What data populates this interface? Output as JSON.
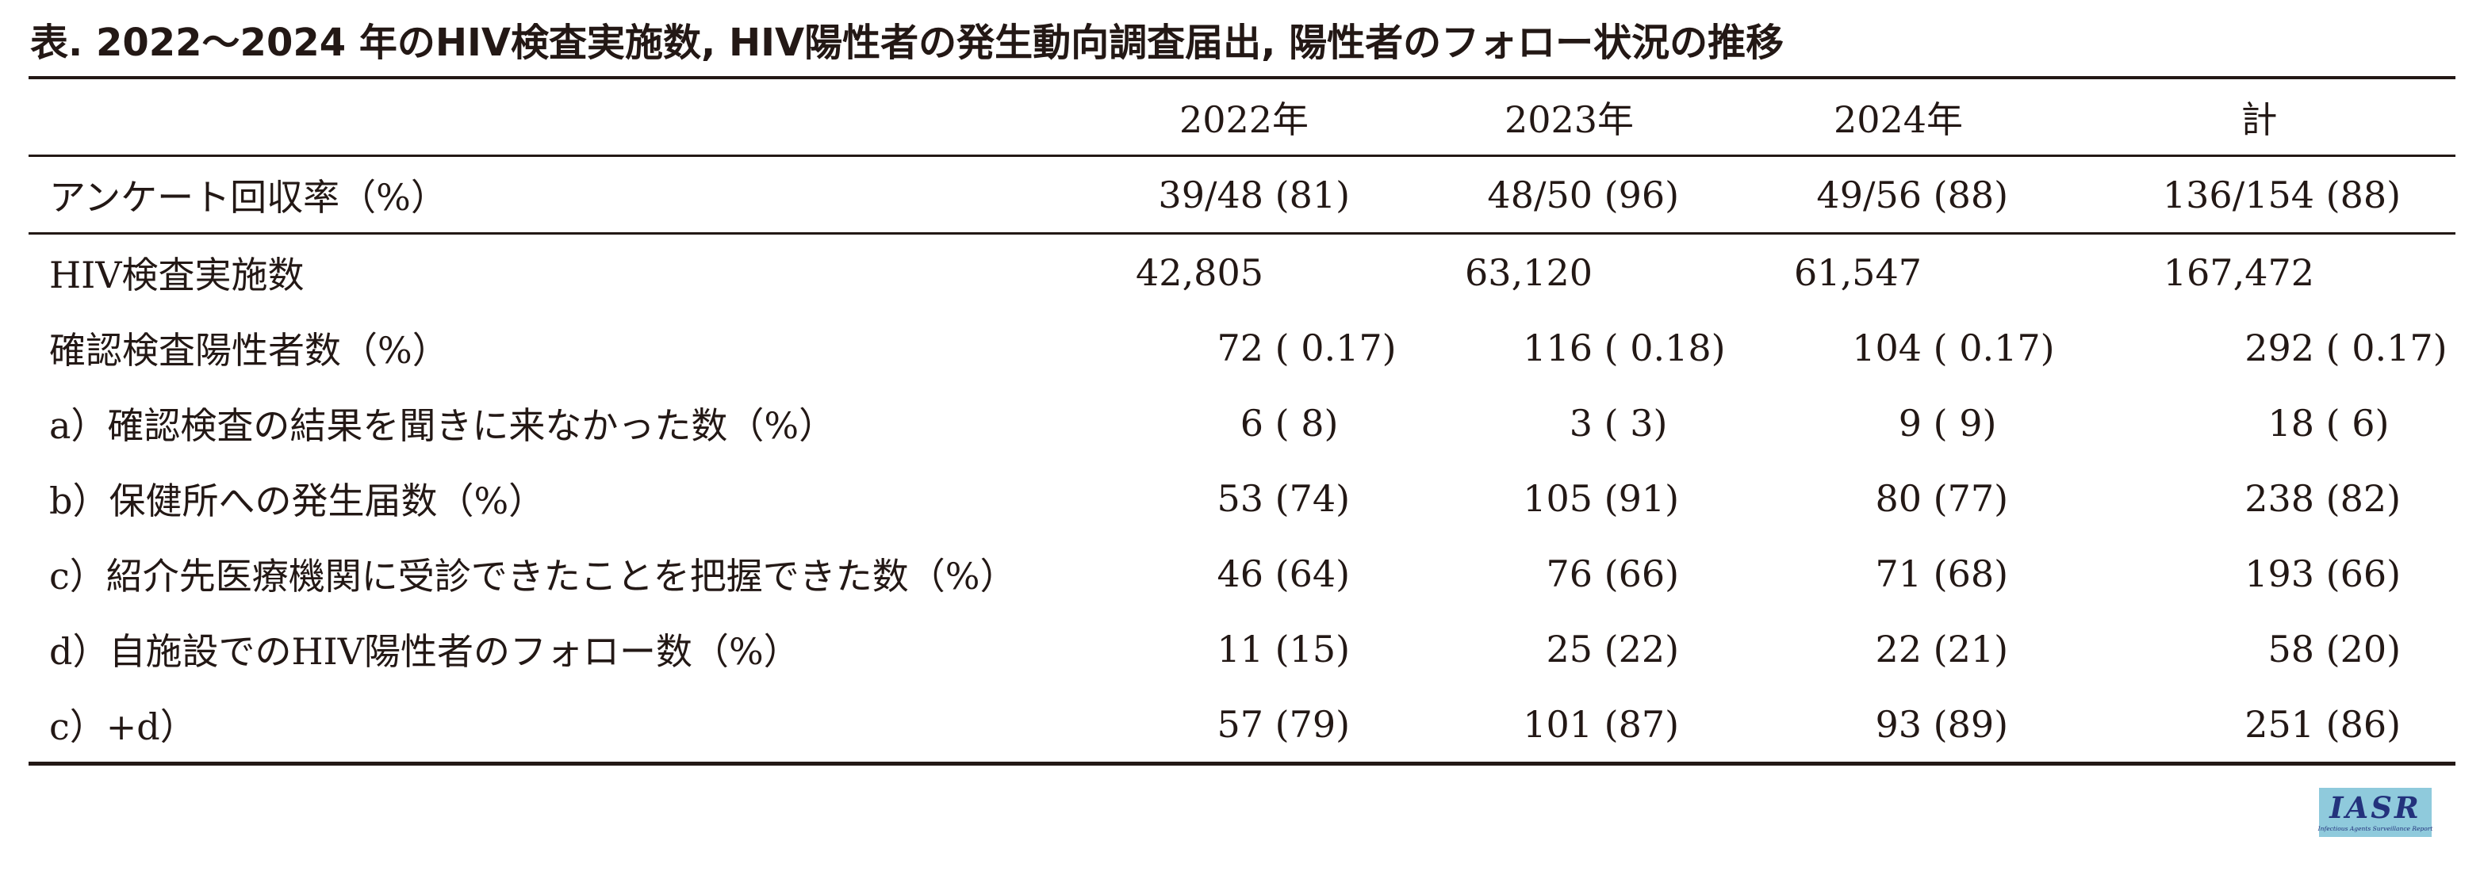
{
  "page": {
    "background_color": "#ffffff",
    "text_color": "#231815"
  },
  "table": {
    "title": "表. 2022～2024 年のHIV検査実施数, HIV陽性者の発生動向調査届出, 陽性者のフォロー状況の推移",
    "column_headers": [
      "2022年",
      "2023年",
      "2024年",
      "計"
    ],
    "sections": [
      {
        "rows": [
          {
            "label": "アンケート回収率（%）",
            "values": [
              [
                "39/48",
                " (81)"
              ],
              [
                "48/50",
                " (96)"
              ],
              [
                "49/56",
                " (88)"
              ],
              [
                "136/154",
                " (88)"
              ]
            ]
          }
        ]
      },
      {
        "rows": [
          {
            "label": "HIV検査実施数",
            "values": [
              [
                "42,805",
                ""
              ],
              [
                "63,120",
                ""
              ],
              [
                "61,547",
                ""
              ],
              [
                "167,472",
                ""
              ]
            ]
          },
          {
            "label": "確認検査陽性者数（%）",
            "values": [
              [
                "72",
                " ( 0.17)"
              ],
              [
                "116",
                " ( 0.18)"
              ],
              [
                "104",
                " ( 0.17)"
              ],
              [
                "292",
                " ( 0.17)"
              ]
            ]
          },
          {
            "label": "a）確認検査の結果を聞きに来なかった数（%）",
            "values": [
              [
                "6",
                " ( 8)"
              ],
              [
                "3",
                " ( 3)"
              ],
              [
                "9",
                " ( 9)"
              ],
              [
                "18",
                " ( 6)"
              ]
            ]
          },
          {
            "label": "b）保健所への発生届数（%）",
            "values": [
              [
                "53",
                " (74)"
              ],
              [
                "105",
                " (91)"
              ],
              [
                "80",
                " (77)"
              ],
              [
                "238",
                " (82)"
              ]
            ]
          },
          {
            "label": "c）紹介先医療機関に受診できたことを把握できた数（%）",
            "values": [
              [
                "46",
                " (64)"
              ],
              [
                "76",
                " (66)"
              ],
              [
                "71",
                " (68)"
              ],
              [
                "193",
                " (66)"
              ]
            ]
          },
          {
            "label": "d）自施設でのHIV陽性者のフォロー数（%）",
            "values": [
              [
                "11",
                " (15)"
              ],
              [
                "25",
                " (22)"
              ],
              [
                "22",
                " (21)"
              ],
              [
                "58",
                " (20)"
              ]
            ]
          },
          {
            "label": "c）+d）",
            "values": [
              [
                "57",
                " (79)"
              ],
              [
                "101",
                " (87)"
              ],
              [
                "93",
                " (89)"
              ],
              [
                "251",
                " (86)"
              ]
            ]
          }
        ]
      }
    ]
  },
  "logo": {
    "acronym": "IASR",
    "subtitle": "Infectious Agents Surveillance Report",
    "background_color": "#8fcadc",
    "text_color": "#23327c"
  }
}
